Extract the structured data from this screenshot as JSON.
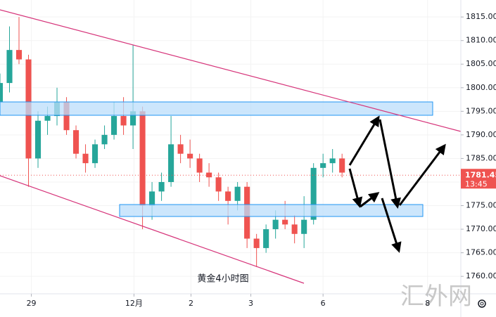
{
  "chart_data": {
    "type": "candlestick",
    "title": "黄金4小时图",
    "watermark": "汇外网",
    "up_color": "#26a69a",
    "down_color": "#ef5350",
    "x": [
      0,
      1,
      2,
      3,
      4,
      5,
      6,
      7,
      8,
      9,
      10,
      11,
      12,
      13,
      14,
      15,
      16,
      17,
      18,
      19,
      20,
      21,
      22,
      23,
      24,
      25,
      26,
      27,
      28,
      29,
      30,
      31,
      32,
      33,
      34,
      35,
      36
    ],
    "open": [
      1797,
      1801,
      1808,
      1806,
      1785,
      1793,
      1794,
      1797,
      1791,
      1786,
      1784,
      1788,
      1790,
      1794,
      1792,
      1795,
      1775,
      1778,
      1780,
      1788,
      1786,
      1785,
      1782,
      1781,
      1778,
      1776,
      1779,
      1768,
      1766,
      1770,
      1772,
      1771,
      1769,
      1772,
      1783,
      1784,
      1785
    ],
    "high": [
      1803,
      1813,
      1815,
      1807,
      1795,
      1796,
      1800,
      1798,
      1792,
      1788,
      1789,
      1792,
      1797,
      1798,
      1809,
      1796,
      1780,
      1782,
      1794,
      1790,
      1789,
      1786,
      1784,
      1782,
      1779,
      1780,
      1780,
      1769,
      1771,
      1774,
      1776,
      1773,
      1777,
      1784,
      1786,
      1787,
      1786
    ],
    "low": [
      1795,
      1799,
      1805,
      1779,
      1783,
      1790,
      1792,
      1790,
      1785,
      1782,
      1783,
      1787,
      1789,
      1790,
      1787,
      1770,
      1772,
      1776,
      1779,
      1784,
      1783,
      1780,
      1779,
      1776,
      1771,
      1774,
      1766,
      1762,
      1765,
      1768,
      1770,
      1767,
      1766,
      1771,
      1781,
      1782,
      1781
    ],
    "close": [
      1801,
      1808,
      1806,
      1785,
      1793,
      1794,
      1797,
      1791,
      1786,
      1784,
      1788,
      1790,
      1794,
      1792,
      1795,
      1775,
      1778,
      1780,
      1788,
      1786,
      1785,
      1782,
      1781,
      1778,
      1776,
      1779,
      1768,
      1766,
      1770,
      1772,
      1771,
      1769,
      1772,
      1783,
      1784,
      1785,
      1782
    ],
    "xlim": [
      0,
      48.5
    ],
    "xticks": [
      {
        "value": 3.3,
        "label": "29"
      },
      {
        "value": 14.1,
        "label": "12月"
      },
      {
        "value": 20.1,
        "label": "2"
      },
      {
        "value": 26.4,
        "label": "3"
      },
      {
        "value": 34,
        "label": "6"
      },
      {
        "value": 45,
        "label": "8"
      }
    ],
    "ylim": [
      1756.3,
      1818.6
    ],
    "yticks": [
      {
        "value": 1760,
        "label": "1760.00"
      },
      {
        "value": 1765,
        "label": "1765.00"
      },
      {
        "value": 1770,
        "label": "1770.00"
      },
      {
        "value": 1775,
        "label": "1775.00"
      },
      {
        "value": 1780,
        "label": "1780.00"
      },
      {
        "value": 1785,
        "label": "1785.00"
      },
      {
        "value": 1790,
        "label": "1790.00"
      },
      {
        "value": 1795,
        "label": "1795.00"
      },
      {
        "value": 1800,
        "label": "1800.00"
      },
      {
        "value": 1805,
        "label": "1805.00"
      },
      {
        "value": 1810,
        "label": "1810.00"
      },
      {
        "value": 1815,
        "label": "1815.00"
      }
    ],
    "current_price": {
      "value": 1781.45,
      "countdown": "13:45"
    }
  }
}
